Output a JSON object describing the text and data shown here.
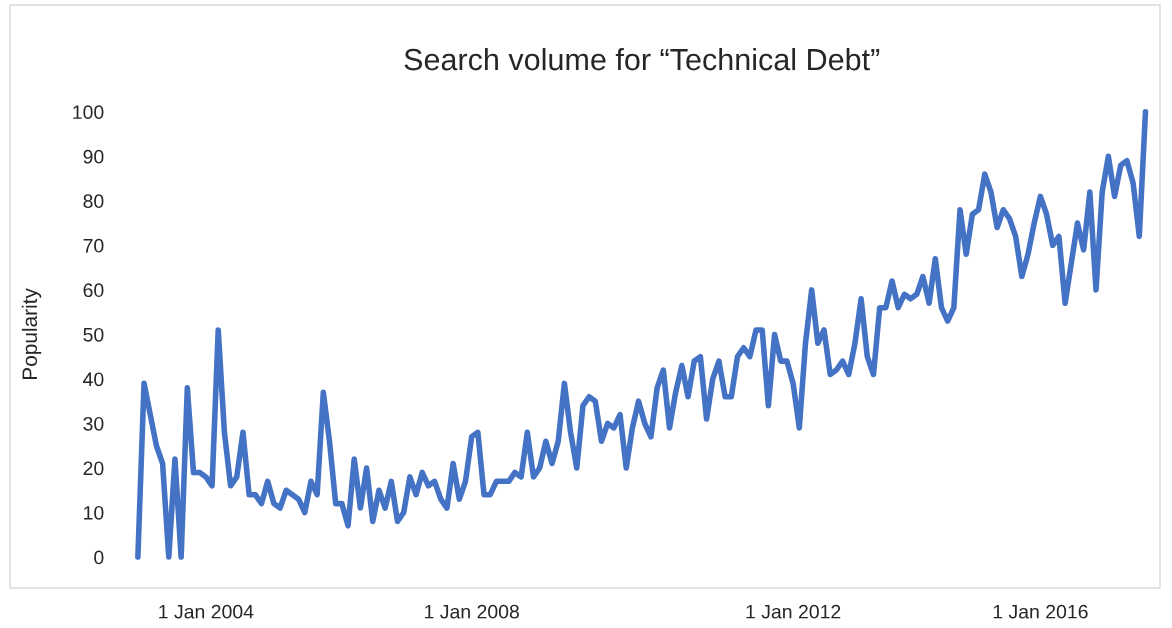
{
  "chart_data": {
    "type": "line",
    "title": "Search volume for “Technical Debt”",
    "ylabel": "Popularity",
    "categories": [
      null,
      null,
      null,
      null,
      null,
      null,
      null,
      null,
      null,
      null,
      null,
      "1 Jan 2004",
      null,
      null,
      null,
      null,
      null,
      null,
      null,
      null,
      null,
      null,
      null,
      null,
      null,
      null,
      null,
      null,
      null,
      null,
      null,
      null,
      null,
      null,
      null,
      null,
      null,
      null,
      null,
      null,
      null,
      null,
      null,
      null,
      null,
      null,
      null,
      null,
      null,
      null,
      null,
      null,
      null,
      null,
      "1 Jan 2008",
      null,
      null,
      null,
      null,
      null,
      null,
      null,
      null,
      null,
      null,
      null,
      null,
      null,
      null,
      null,
      null,
      null,
      null,
      null,
      null,
      null,
      null,
      null,
      null,
      null,
      null,
      null,
      null,
      null,
      null,
      null,
      null,
      null,
      null,
      null,
      null,
      null,
      null,
      null,
      null,
      null,
      null,
      null,
      null,
      null,
      null,
      null,
      null,
      null,
      null,
      null,
      "1 Jan 2012",
      null,
      null,
      null,
      null,
      null,
      null,
      null,
      null,
      null,
      null,
      null,
      null,
      null,
      null,
      null,
      null,
      null,
      null,
      null,
      null,
      null,
      null,
      null,
      null,
      null,
      null,
      null,
      null,
      null,
      null,
      null,
      null,
      null,
      null,
      null,
      null,
      null,
      null,
      null,
      "1 Jan 2016",
      null,
      null,
      null,
      null,
      null,
      null,
      null,
      null,
      null,
      null,
      null,
      null,
      null,
      null,
      null,
      null,
      null
    ],
    "series": [
      {
        "color": "#4472c4",
        "values": [
          0,
          39,
          32,
          25,
          21,
          0,
          22,
          0,
          38,
          19,
          19,
          18,
          16,
          51,
          28,
          16,
          18,
          28,
          14,
          14,
          12,
          17,
          12,
          11,
          15,
          14,
          13,
          10,
          17,
          14,
          37,
          26,
          12,
          12,
          7,
          22,
          11,
          20,
          8,
          15,
          11,
          17,
          8,
          10,
          18,
          14,
          19,
          16,
          17,
          13,
          11,
          21,
          13,
          17,
          27,
          28,
          14,
          14,
          17,
          17,
          17,
          19,
          18,
          28,
          18,
          20,
          26,
          21,
          26,
          39,
          28,
          20,
          34,
          36,
          35,
          26,
          30,
          29,
          32,
          20,
          29,
          35,
          30,
          27,
          38,
          42,
          29,
          37,
          43,
          36,
          44,
          45,
          31,
          40,
          44,
          36,
          36,
          45,
          47,
          45,
          51,
          51,
          34,
          50,
          44,
          44,
          39,
          29,
          48,
          60,
          48,
          51,
          41,
          42,
          44,
          41,
          48,
          58,
          45,
          41,
          56,
          56,
          62,
          56,
          59,
          58,
          59,
          63,
          57,
          67,
          56,
          53,
          56,
          78,
          68,
          77,
          78,
          86,
          82,
          74,
          78,
          76,
          72,
          63,
          68,
          75,
          81,
          77,
          70,
          72,
          57,
          66,
          75,
          69,
          82,
          60,
          82,
          90,
          81,
          88,
          89,
          84,
          72,
          100
        ]
      }
    ],
    "ylim": [
      0,
      100
    ],
    "yticks": [
      0,
      10,
      20,
      30,
      40,
      50,
      60,
      70,
      80,
      90,
      100
    ],
    "grid": false,
    "marker": "none",
    "line_style": "solid"
  }
}
